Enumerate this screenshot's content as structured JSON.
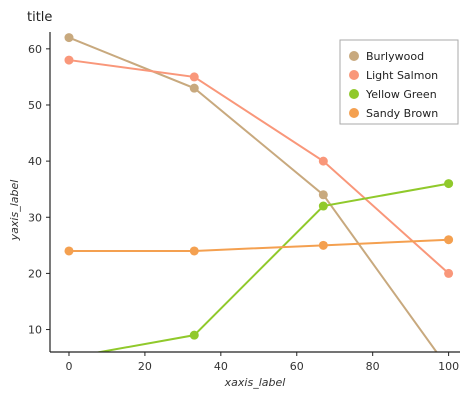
{
  "chart_data": {
    "type": "scatter",
    "title": "title",
    "xlabel": "xaxis_label",
    "ylabel": "yaxis_label",
    "xlim": [
      -5,
      103
    ],
    "ylim": [
      6,
      63
    ],
    "xticks": [
      0,
      20,
      40,
      60,
      80,
      100
    ],
    "yticks": [
      10,
      20,
      30,
      40,
      50,
      60
    ],
    "legend_position": "top-right",
    "series": [
      {
        "name": "Burlywood",
        "color": "#c8a97e",
        "points": [
          [
            0,
            62
          ],
          [
            33,
            53
          ],
          [
            67,
            34
          ],
          [
            100,
            3
          ]
        ]
      },
      {
        "name": "Light Salmon",
        "color": "#f9977a",
        "points": [
          [
            0,
            58
          ],
          [
            33,
            55
          ],
          [
            67,
            40
          ],
          [
            100,
            20
          ]
        ]
      },
      {
        "name": "Yellow Green",
        "color": "#90c92b",
        "points": [
          [
            0,
            5
          ],
          [
            33,
            9
          ],
          [
            67,
            32
          ],
          [
            100,
            36
          ]
        ]
      },
      {
        "name": "Sandy Brown",
        "color": "#f4a050",
        "points": [
          [
            0,
            24
          ],
          [
            33,
            24
          ],
          [
            67,
            25
          ],
          [
            100,
            26
          ]
        ]
      }
    ]
  }
}
